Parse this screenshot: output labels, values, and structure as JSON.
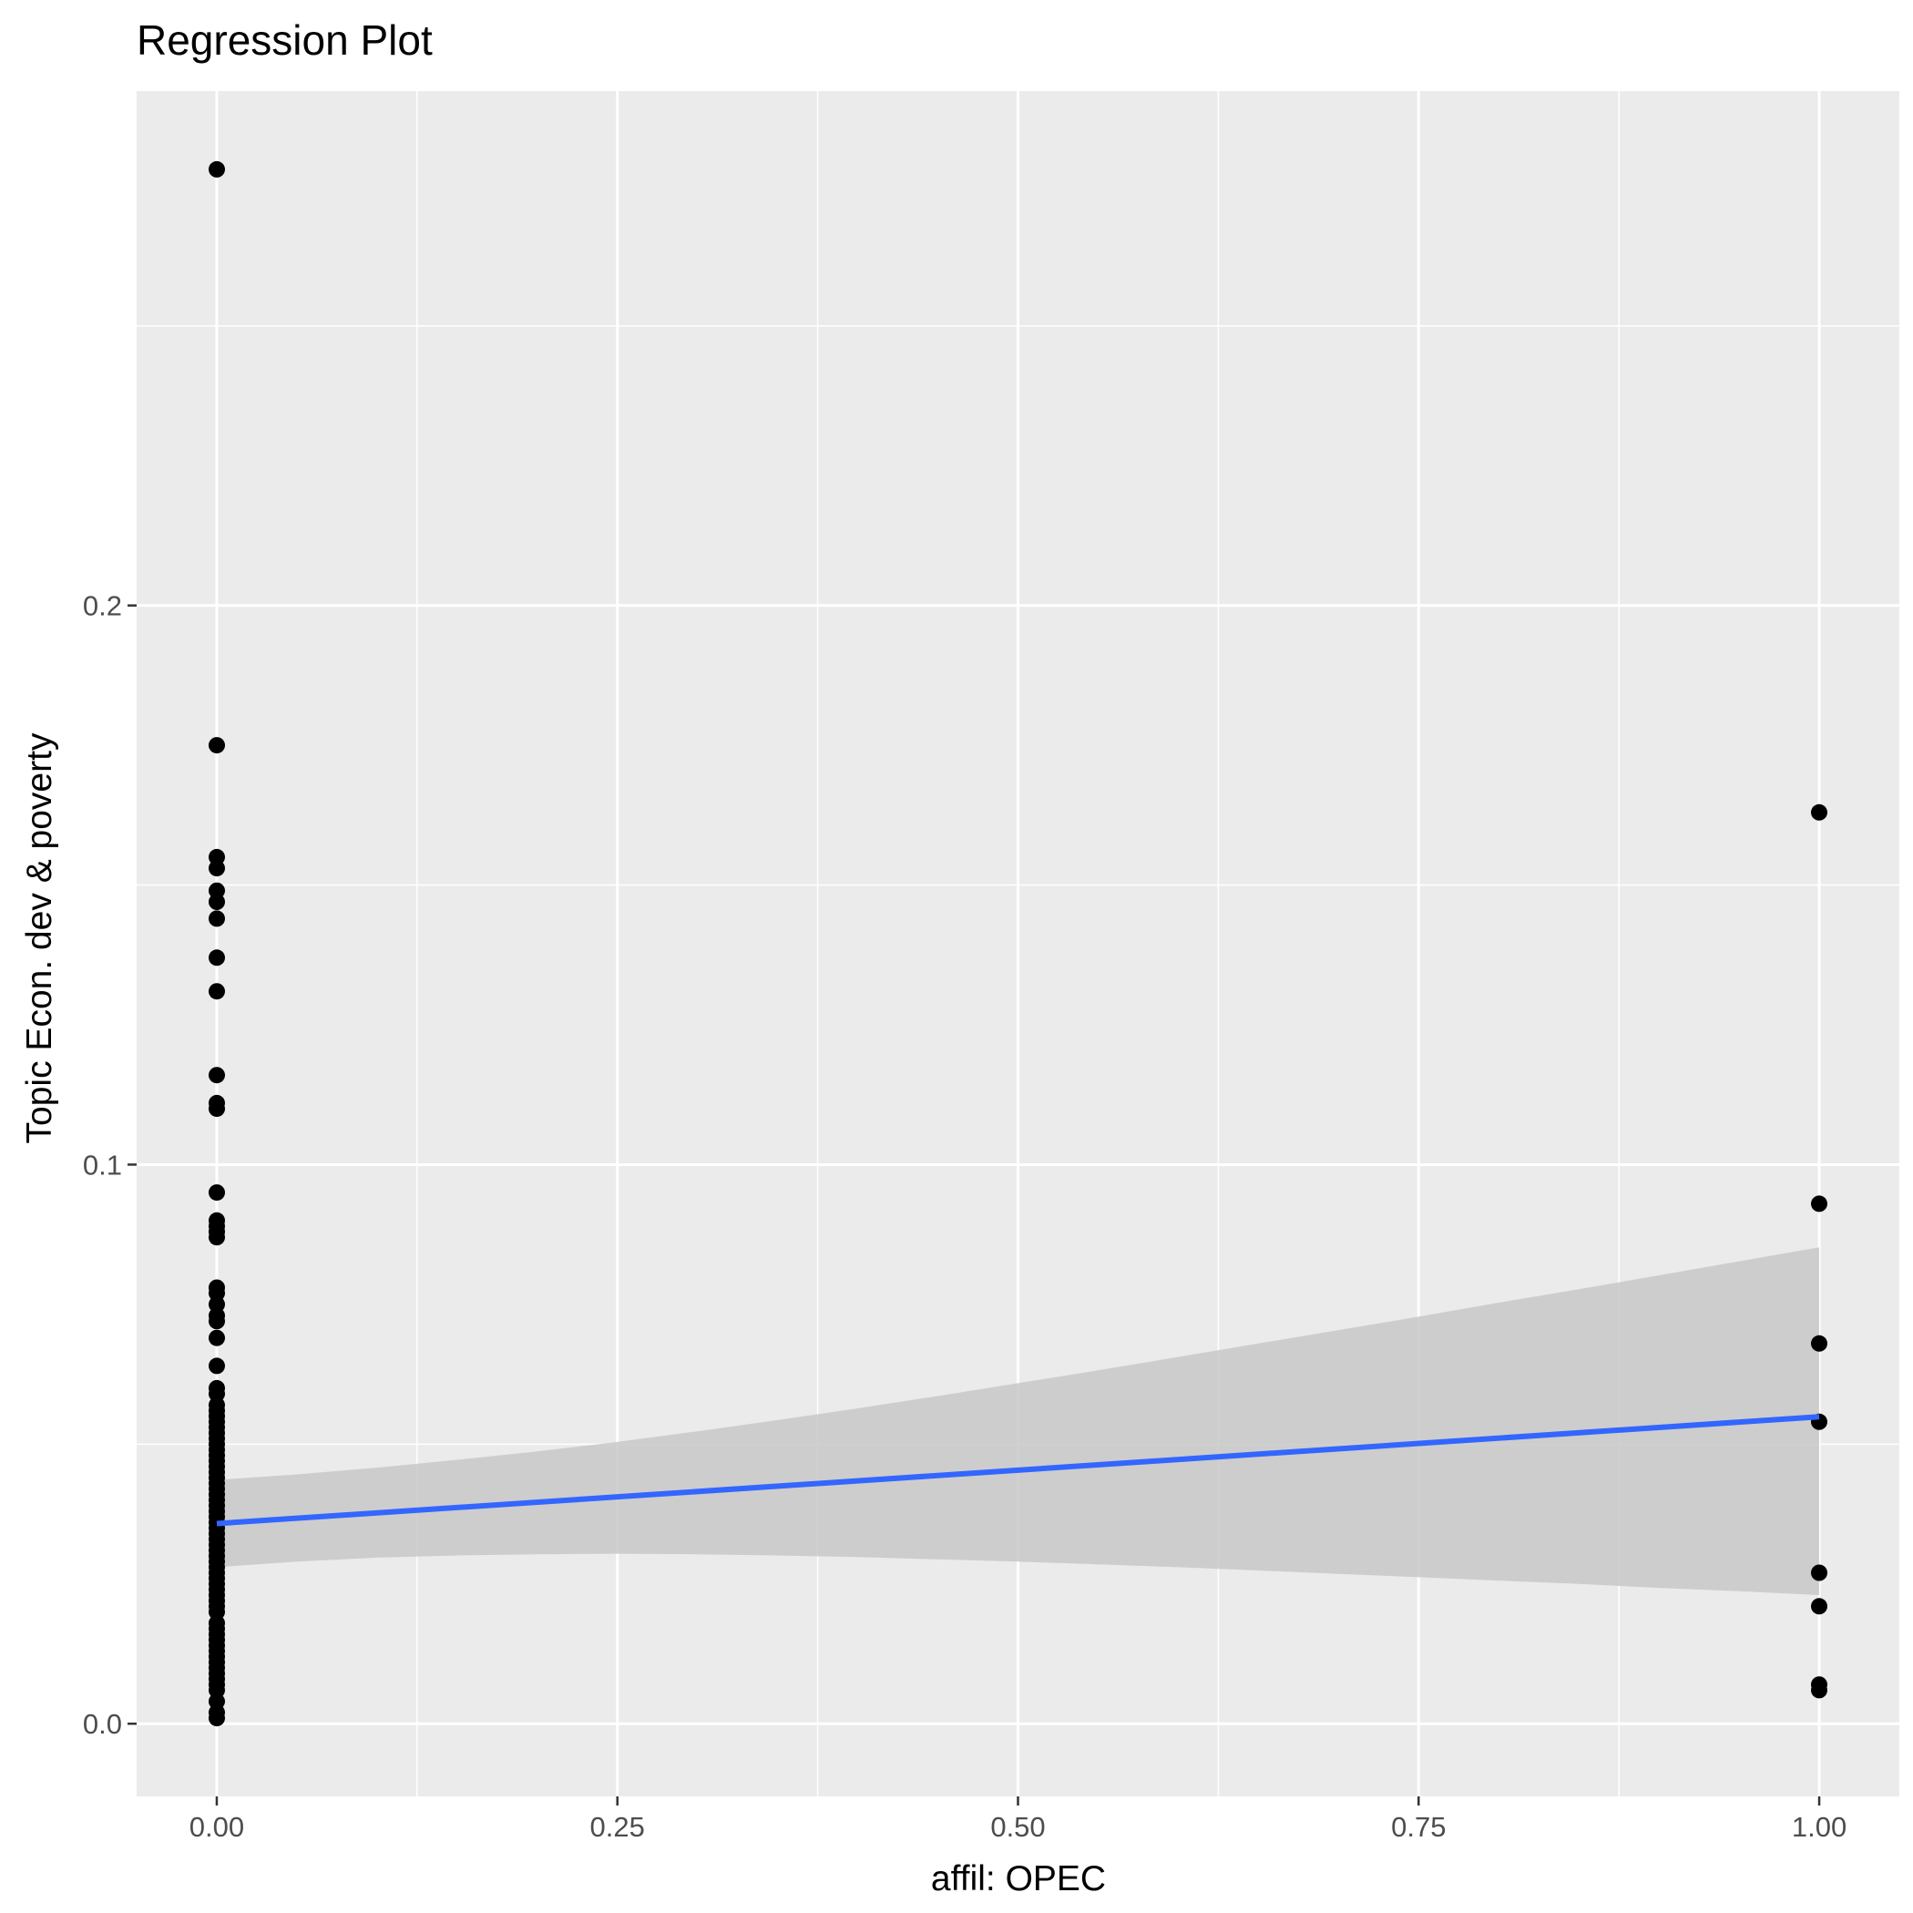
{
  "chart_data": {
    "type": "scatter",
    "title": "Regression Plot",
    "xlabel": "affil: OPEC",
    "ylabel": "Topic Econ. dev & poverty",
    "xlim": [
      -0.05,
      1.05
    ],
    "ylim": [
      -0.013,
      0.292
    ],
    "x_ticks": [
      0.0,
      0.25,
      0.5,
      0.75,
      1.0
    ],
    "x_tick_labels": [
      "0.00",
      "0.25",
      "0.50",
      "0.75",
      "1.00"
    ],
    "y_ticks": [
      0.0,
      0.1,
      0.2
    ],
    "y_tick_labels": [
      "0.0",
      "0.1",
      "0.2"
    ],
    "grid": true,
    "legend": "none",
    "colors": {
      "panel_background": "#ebebeb",
      "grid": "#ffffff",
      "points": "#000000",
      "fit_line": "#3366ff",
      "confidence_band": "#c8c8c8"
    },
    "points": {
      "x": [
        0,
        0,
        0,
        0,
        0,
        0,
        0,
        0,
        0,
        0,
        0,
        0,
        0,
        0,
        0,
        0,
        0,
        0,
        0,
        0,
        0,
        0,
        0,
        0,
        0,
        0,
        0,
        0,
        0,
        0,
        0,
        0,
        0,
        0,
        0,
        0,
        0,
        0,
        0,
        0,
        0,
        0,
        0,
        0,
        0,
        0,
        0,
        0,
        0,
        0,
        0,
        0,
        0,
        0,
        0,
        0,
        0,
        0,
        0,
        0,
        0,
        0,
        0,
        0,
        0,
        0,
        0,
        0,
        0,
        0,
        0,
        0,
        0,
        0,
        0,
        0,
        0,
        0,
        0,
        0,
        1,
        1,
        1,
        1,
        1,
        1,
        1,
        1
      ],
      "y": [
        0.278,
        0.175,
        0.155,
        0.153,
        0.149,
        0.147,
        0.144,
        0.137,
        0.131,
        0.116,
        0.111,
        0.11,
        0.095,
        0.09,
        0.089,
        0.088,
        0.087,
        0.078,
        0.077,
        0.075,
        0.073,
        0.072,
        0.069,
        0.064,
        0.06,
        0.059,
        0.057,
        0.056,
        0.055,
        0.054,
        0.053,
        0.052,
        0.051,
        0.05,
        0.049,
        0.048,
        0.047,
        0.046,
        0.045,
        0.044,
        0.043,
        0.042,
        0.041,
        0.04,
        0.039,
        0.038,
        0.037,
        0.036,
        0.035,
        0.034,
        0.033,
        0.032,
        0.031,
        0.03,
        0.029,
        0.028,
        0.027,
        0.026,
        0.025,
        0.024,
        0.023,
        0.022,
        0.021,
        0.02,
        0.018,
        0.017,
        0.016,
        0.015,
        0.014,
        0.013,
        0.012,
        0.011,
        0.01,
        0.009,
        0.008,
        0.007,
        0.006,
        0.004,
        0.002,
        0.001,
        0.163,
        0.093,
        0.068,
        0.054,
        0.027,
        0.021,
        0.007,
        0.006
      ]
    },
    "fit_line": {
      "x": [
        0,
        1
      ],
      "y": [
        0.0358,
        0.0549
      ]
    },
    "confidence_band": {
      "x": [
        0,
        0.05,
        0.1,
        0.15,
        0.2,
        0.25,
        0.3,
        0.35,
        0.4,
        0.45,
        0.5,
        0.55,
        0.6,
        0.65,
        0.7,
        0.75,
        0.8,
        0.85,
        0.9,
        0.95,
        1.0
      ],
      "upper": [
        0.0436,
        0.0446,
        0.0458,
        0.0472,
        0.0487,
        0.0504,
        0.0523,
        0.0543,
        0.0564,
        0.0586,
        0.0609,
        0.0632,
        0.0656,
        0.068,
        0.0704,
        0.0728,
        0.0753,
        0.0777,
        0.0802,
        0.0827,
        0.0852
      ],
      "lower": [
        0.028,
        0.029,
        0.0297,
        0.0301,
        0.0303,
        0.0304,
        0.0303,
        0.0301,
        0.0298,
        0.0294,
        0.029,
        0.0285,
        0.028,
        0.0274,
        0.0268,
        0.0262,
        0.0256,
        0.025,
        0.0243,
        0.0237,
        0.023
      ]
    }
  }
}
